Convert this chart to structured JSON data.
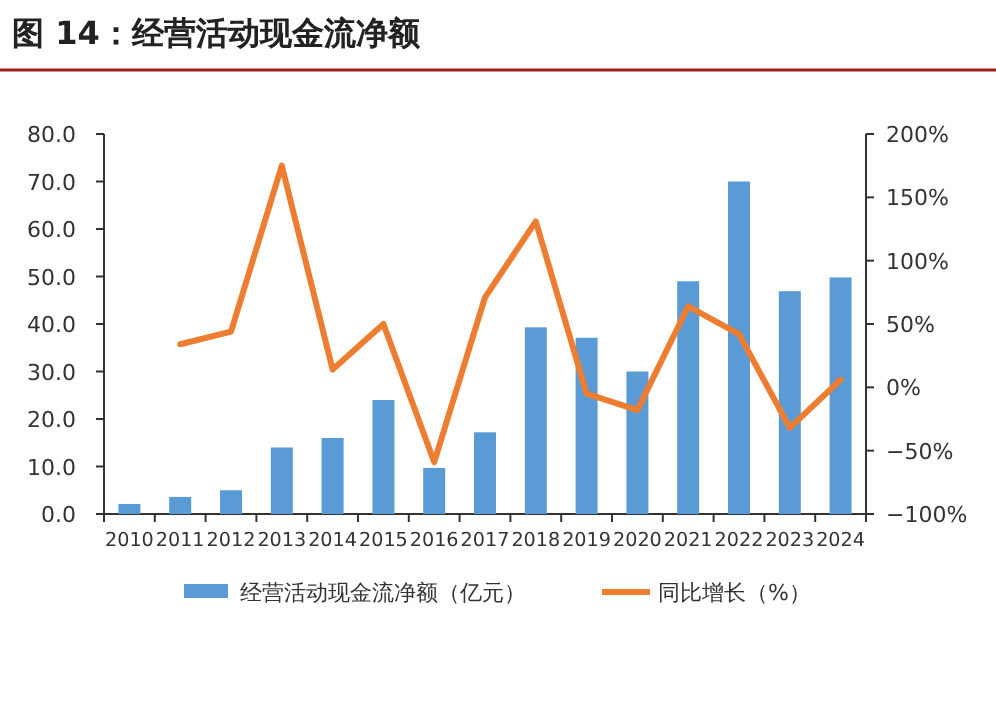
{
  "chart_data": {
    "type": "bar",
    "title": "图 14：经营活动现金流净额",
    "categories": [
      "2010",
      "2011",
      "2012",
      "2013",
      "2014",
      "2015",
      "2016",
      "2017",
      "2018",
      "2019",
      "2020",
      "2021",
      "2022",
      "2023",
      "2024"
    ],
    "series": [
      {
        "name": "经营活动现金流净额（亿元）",
        "color": "#5b9bd5",
        "values": [
          2.1,
          3.6,
          5.0,
          14.0,
          16.0,
          24.0,
          9.7,
          17.2,
          39.3,
          37.1,
          30.0,
          49.0,
          70.0,
          46.9,
          49.8
        ]
      },
      {
        "name": "同比增长（%）",
        "type": "line",
        "axis": "y2",
        "color": "#ed7d31",
        "values": [
          null,
          34,
          44,
          175,
          14,
          50,
          -59,
          71,
          131,
          -5,
          -18,
          64,
          42,
          -32,
          6
        ]
      }
    ],
    "ylim": [
      0,
      80
    ],
    "yticks": [
      {
        "value": 0,
        "label": "0.0"
      },
      {
        "value": 10,
        "label": "10.0"
      },
      {
        "value": 20,
        "label": "20.0"
      },
      {
        "value": 30,
        "label": "30.0"
      },
      {
        "value": 40,
        "label": "40.0"
      },
      {
        "value": 50,
        "label": "50.0"
      },
      {
        "value": 60,
        "label": "60.0"
      },
      {
        "value": 70,
        "label": "70.0"
      },
      {
        "value": 80,
        "label": "80.0"
      }
    ],
    "y2lim": [
      -100,
      200
    ],
    "y2ticks": [
      {
        "value": -100,
        "label": "−100%"
      },
      {
        "value": -50,
        "label": "−50%"
      },
      {
        "value": 0,
        "label": "0%"
      },
      {
        "value": 50,
        "label": "50%"
      },
      {
        "value": 100,
        "label": "100%"
      },
      {
        "value": 150,
        "label": "150%"
      },
      {
        "value": 200,
        "label": "200%"
      }
    ],
    "legend": "bottom"
  }
}
